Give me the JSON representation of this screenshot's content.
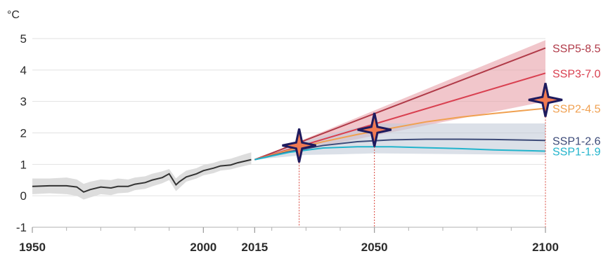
{
  "chart_data": {
    "type": "line",
    "unit_label": "°C",
    "xlim": [
      1950,
      2100
    ],
    "ylim": [
      -1,
      5
    ],
    "x_tick_values": [
      1950,
      2000,
      2015,
      2050,
      2100
    ],
    "x_tick_labels": [
      "1950",
      "2000",
      "2015",
      "2050",
      "2100"
    ],
    "x_minor_ticks": [
      1960,
      1970,
      1980,
      1990,
      2010,
      2020,
      2030,
      2040,
      2060,
      2070,
      2080,
      2090
    ],
    "y_ticks": [
      -1,
      0,
      1,
      2,
      3,
      4,
      5
    ],
    "y_tick_labels": [
      "-1",
      "0",
      "1",
      "2",
      "3",
      "4",
      "5"
    ],
    "grid": true,
    "observed": {
      "color": "#333333",
      "band_color": "#d9d9d9",
      "x": [
        1950,
        1955,
        1960,
        1963,
        1965,
        1967,
        1970,
        1973,
        1975,
        1978,
        1980,
        1983,
        1985,
        1988,
        1990,
        1992,
        1993,
        1995,
        1998,
        2000,
        2003,
        2005,
        2008,
        2010,
        2012,
        2014
      ],
      "y": [
        0.3,
        0.32,
        0.32,
        0.28,
        0.12,
        0.2,
        0.28,
        0.25,
        0.3,
        0.3,
        0.37,
        0.42,
        0.5,
        0.58,
        0.7,
        0.35,
        0.45,
        0.6,
        0.7,
        0.8,
        0.88,
        0.95,
        0.98,
        1.05,
        1.1,
        1.15
      ],
      "lower": [
        0.05,
        0.08,
        0.05,
        0.0,
        -0.12,
        -0.05,
        0.05,
        0.02,
        0.08,
        0.1,
        0.18,
        0.22,
        0.3,
        0.4,
        0.5,
        0.15,
        0.25,
        0.45,
        0.55,
        0.65,
        0.72,
        0.8,
        0.84,
        0.9,
        0.95,
        1.0
      ],
      "upper": [
        0.55,
        0.55,
        0.58,
        0.52,
        0.38,
        0.45,
        0.52,
        0.5,
        0.55,
        0.52,
        0.58,
        0.62,
        0.7,
        0.78,
        0.85,
        0.55,
        0.65,
        0.8,
        0.88,
        0.98,
        1.05,
        1.12,
        1.18,
        1.25,
        1.32,
        1.38
      ]
    },
    "series": [
      {
        "name": "SSP5-8.5",
        "color": "#b03a48",
        "x": [
          2015,
          2100
        ],
        "y": [
          1.15,
          4.7
        ]
      },
      {
        "name": "SSP3-7.0",
        "color": "#d94050",
        "x": [
          2015,
          2100
        ],
        "y": [
          1.15,
          3.9
        ]
      },
      {
        "name": "SSP2-4.5",
        "color": "#f0a050",
        "x": [
          2015,
          2025,
          2035,
          2045,
          2055,
          2065,
          2075,
          2085,
          2100
        ],
        "y": [
          1.15,
          1.45,
          1.72,
          1.95,
          2.15,
          2.35,
          2.5,
          2.62,
          2.78
        ]
      },
      {
        "name": "SSP1-2.6",
        "color": "#3c4a78",
        "x": [
          2015,
          2025,
          2035,
          2045,
          2055,
          2065,
          2075,
          2085,
          2100
        ],
        "y": [
          1.15,
          1.4,
          1.6,
          1.72,
          1.78,
          1.8,
          1.8,
          1.79,
          1.76
        ]
      },
      {
        "name": "SSP1-1.9",
        "color": "#22b4cc",
        "x": [
          2015,
          2025,
          2035,
          2045,
          2055,
          2065,
          2075,
          2085,
          2100
        ],
        "y": [
          1.15,
          1.38,
          1.52,
          1.56,
          1.56,
          1.53,
          1.5,
          1.46,
          1.42
        ]
      }
    ],
    "bands": [
      {
        "color": "#e8a0a8",
        "x": [
          2015,
          2100
        ],
        "lower": [
          1.15,
          3.0
        ],
        "upper": [
          1.15,
          4.95
        ]
      },
      {
        "color": "#c3ccd8",
        "x": [
          2015,
          2030,
          2040,
          2050,
          2100
        ],
        "lower": [
          1.15,
          1.3,
          1.32,
          1.35,
          1.3
        ],
        "upper": [
          1.15,
          1.75,
          2.05,
          2.3,
          2.3
        ]
      }
    ],
    "markers": [
      {
        "x": 2028,
        "y": 1.6
      },
      {
        "x": 2050,
        "y": 2.1
      },
      {
        "x": 2100,
        "y": 3.05
      }
    ],
    "marker_colors": {
      "fill": "#f07a52",
      "stroke": "#1e1b5e"
    },
    "dropline_color": "#d9443a"
  }
}
